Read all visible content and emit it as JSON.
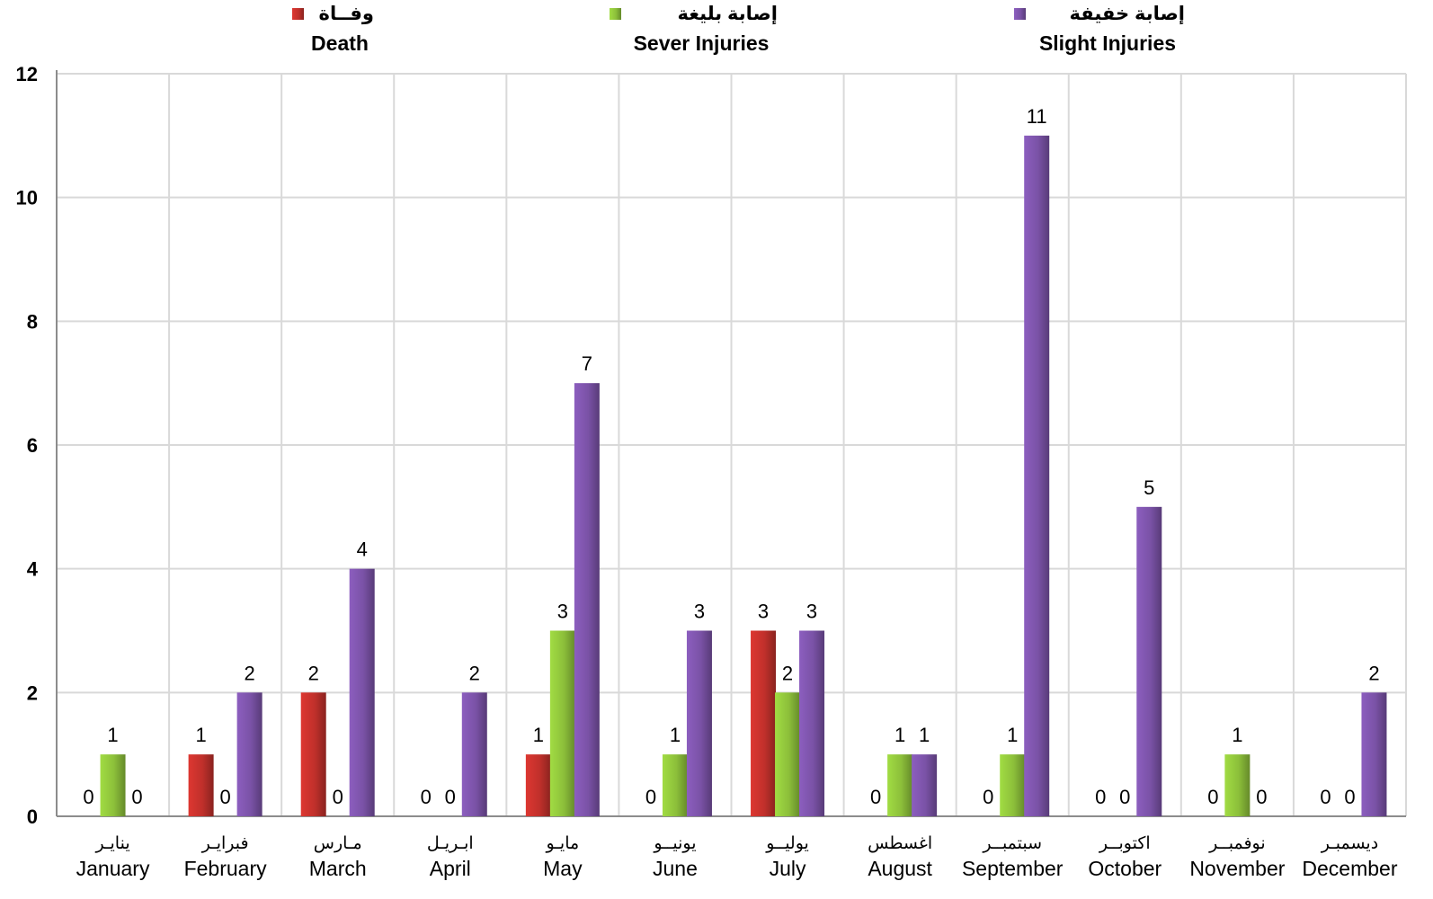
{
  "chart_data": {
    "type": "bar",
    "categories": [
      {
        "ar": "ينايـر",
        "en": "January"
      },
      {
        "ar": "فبرايـر",
        "en": "February"
      },
      {
        "ar": "مـارس",
        "en": "March"
      },
      {
        "ar": "ابـريـل",
        "en": "April"
      },
      {
        "ar": "مايـو",
        "en": "May"
      },
      {
        "ar": "يونيــو",
        "en": "June"
      },
      {
        "ar": "يوليــو",
        "en": "July"
      },
      {
        "ar": "اغسطس",
        "en": "August"
      },
      {
        "ar": "سبتمبــر",
        "en": "September"
      },
      {
        "ar": "اكتوبــر",
        "en": "October"
      },
      {
        "ar": "نوفمبــر",
        "en": "November"
      },
      {
        "ar": "ديسمبـر",
        "en": "December"
      }
    ],
    "series": [
      {
        "name_ar": "وفــاة",
        "name_en": "Death",
        "color": "#c0302b",
        "values": [
          0,
          1,
          2,
          0,
          1,
          0,
          3,
          0,
          0,
          0,
          0,
          0
        ]
      },
      {
        "name_ar": "إصابة بليغة",
        "name_en": "Sever Injuries",
        "color": "#8cbf3a",
        "values": [
          1,
          0,
          0,
          0,
          3,
          1,
          2,
          1,
          1,
          0,
          1,
          0
        ]
      },
      {
        "name_ar": "إصابة خفيفة",
        "name_en": "Slight Injuries",
        "color": "#7a52a6",
        "values": [
          0,
          2,
          4,
          2,
          7,
          3,
          3,
          1,
          11,
          5,
          0,
          2
        ]
      }
    ],
    "ylim": [
      0,
      12
    ],
    "yticks": [
      0,
      2,
      4,
      6,
      8,
      10,
      12
    ],
    "grid": true,
    "legend_position": "top"
  }
}
